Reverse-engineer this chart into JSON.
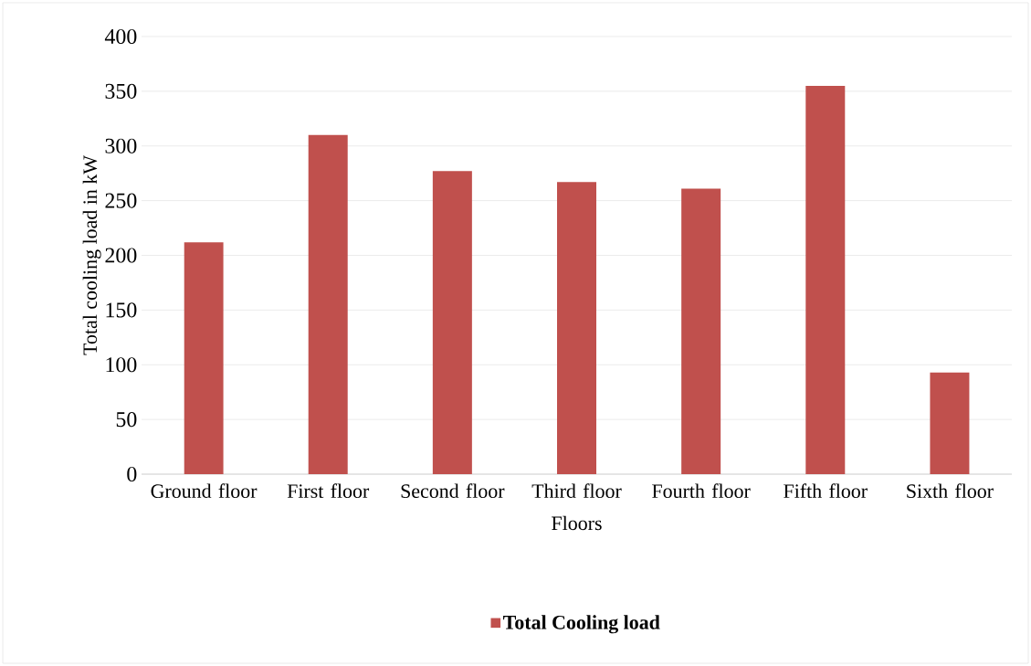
{
  "chart_data": {
    "type": "bar",
    "xlabel": "Floors",
    "ylabel": "Total cooling load in kW",
    "categories": [
      "Ground floor",
      "First floor",
      "Second floor",
      "Third floor",
      "Fourth floor",
      "Fifth floor",
      "Sixth floor"
    ],
    "series": [
      {
        "name": "Total Cooling load",
        "color": "#c0504d",
        "values": [
          212,
          310,
          277,
          267,
          261,
          355,
          93
        ]
      }
    ],
    "ylim": [
      0,
      400
    ],
    "yticks": [
      0,
      50,
      100,
      150,
      200,
      250,
      300,
      350,
      400
    ],
    "grid": "y",
    "legend": "bottom"
  }
}
